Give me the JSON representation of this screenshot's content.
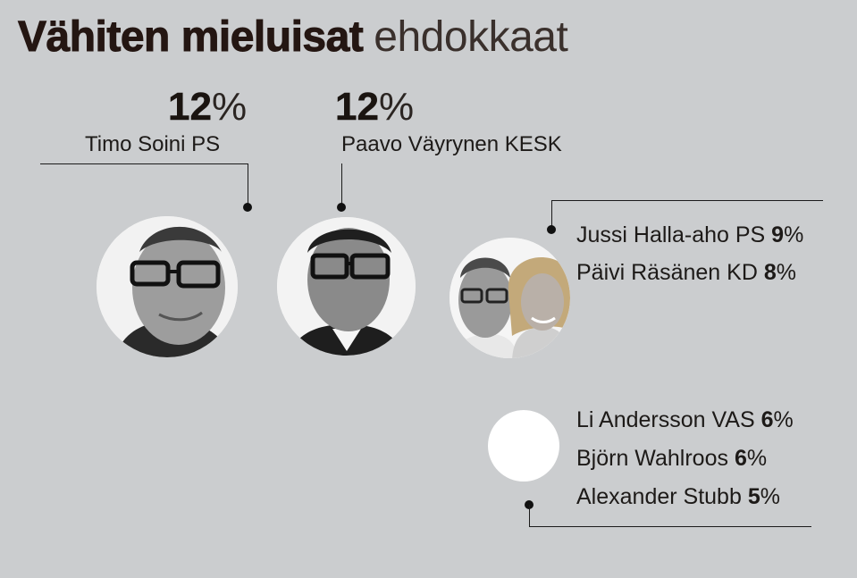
{
  "title": {
    "bold": "Vähiten mieluisat",
    "light": "ehdokkaat"
  },
  "percent_sign": "%",
  "featured": [
    {
      "name": "Timo Soini PS",
      "value": "12"
    },
    {
      "name": "Paavo Väyrynen KESK",
      "value": "12"
    }
  ],
  "group_two": [
    {
      "name": "Jussi Halla-aho PS",
      "value": "9"
    },
    {
      "name": "Päivi Räsänen KD",
      "value": "8"
    }
  ],
  "group_three": [
    {
      "name": "Li Andersson VAS",
      "value": "6"
    },
    {
      "name": "Björn Wahlroos",
      "value": "6"
    },
    {
      "name": "Alexander Stubb",
      "value": "5"
    }
  ]
}
